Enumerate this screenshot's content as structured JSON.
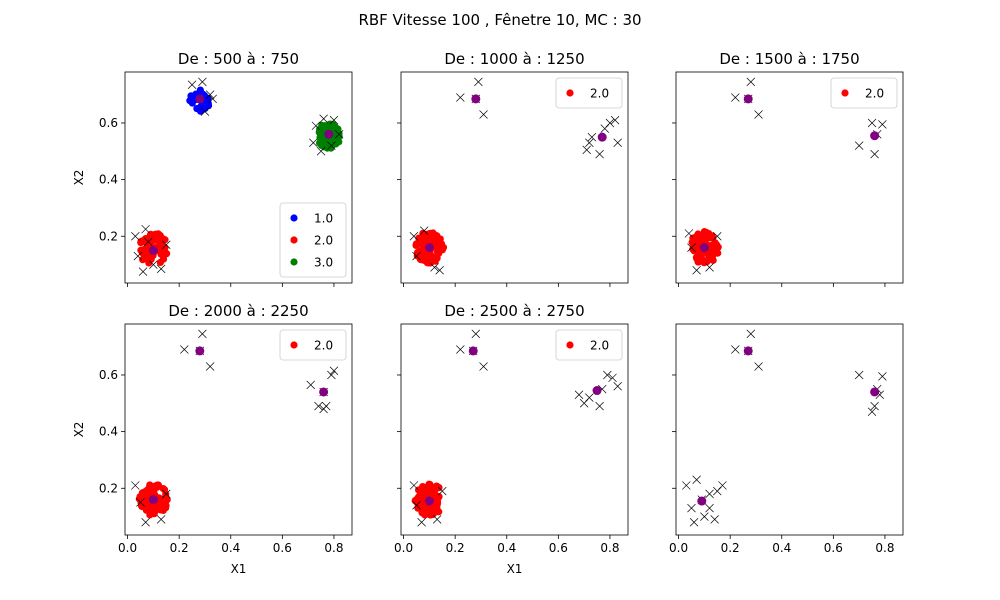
{
  "figure": {
    "title": "RBF Vitesse 100 , Fênetre 10, MC : 30"
  },
  "colors": {
    "1.0": "#0000ff",
    "2.0": "#ff0000",
    "3.0": "#008000",
    "center": "#800080",
    "cross": "#000000"
  },
  "chart_data": [
    {
      "type": "scatter",
      "title": "De :  500 à : 750",
      "xlabel": "",
      "ylabel": "X2",
      "xlim": [
        -0.01,
        0.87
      ],
      "ylim": [
        0.035,
        0.78
      ],
      "xticks": [
        0.0,
        0.2,
        0.4,
        0.6,
        0.8
      ],
      "yticks": [
        0.2,
        0.4,
        0.6
      ],
      "show_xticklabels": false,
      "show_yticklabels": true,
      "legend": {
        "position": "lower-right",
        "entries": [
          "1.0",
          "2.0",
          "3.0"
        ]
      },
      "clusters": [
        {
          "class": "1.0",
          "center": [
            0.28,
            0.675
          ],
          "spread": 0.04,
          "n": 28
        },
        {
          "class": "2.0",
          "center": [
            0.1,
            0.155
          ],
          "spread": 0.055,
          "n": 70
        },
        {
          "class": "3.0",
          "center": [
            0.78,
            0.555
          ],
          "spread": 0.045,
          "n": 70
        }
      ],
      "crosses": [
        [
          0.25,
          0.735
        ],
        [
          0.29,
          0.745
        ],
        [
          0.32,
          0.7
        ],
        [
          0.3,
          0.64
        ],
        [
          0.33,
          0.685
        ],
        [
          0.03,
          0.2
        ],
        [
          0.07,
          0.225
        ],
        [
          0.04,
          0.13
        ],
        [
          0.1,
          0.1
        ],
        [
          0.13,
          0.085
        ],
        [
          0.06,
          0.075
        ],
        [
          0.15,
          0.17
        ],
        [
          0.08,
          0.18
        ],
        [
          0.73,
          0.59
        ],
        [
          0.76,
          0.615
        ],
        [
          0.8,
          0.61
        ],
        [
          0.82,
          0.56
        ],
        [
          0.72,
          0.53
        ],
        [
          0.75,
          0.5
        ],
        [
          0.79,
          0.52
        ]
      ],
      "centers": [
        [
          0.28,
          0.685
        ],
        [
          0.1,
          0.15
        ],
        [
          0.78,
          0.56
        ]
      ]
    },
    {
      "type": "scatter",
      "title": "De :  1000 à : 1250",
      "xlabel": "",
      "ylabel": "",
      "xlim": [
        -0.01,
        0.87
      ],
      "ylim": [
        0.035,
        0.78
      ],
      "xticks": [
        0.0,
        0.2,
        0.4,
        0.6,
        0.8
      ],
      "yticks": [
        0.2,
        0.4,
        0.6
      ],
      "show_xticklabels": false,
      "show_yticklabels": false,
      "legend": {
        "position": "upper-right",
        "entries": [
          "2.0"
        ]
      },
      "clusters": [
        {
          "class": "2.0",
          "center": [
            0.1,
            0.16
          ],
          "spread": 0.055,
          "n": 80
        }
      ],
      "crosses": [
        [
          0.22,
          0.69
        ],
        [
          0.29,
          0.745
        ],
        [
          0.31,
          0.63
        ],
        [
          0.28,
          0.685
        ],
        [
          0.72,
          0.53
        ],
        [
          0.73,
          0.55
        ],
        [
          0.76,
          0.49
        ],
        [
          0.78,
          0.58
        ],
        [
          0.8,
          0.6
        ],
        [
          0.82,
          0.61
        ],
        [
          0.83,
          0.53
        ],
        [
          0.71,
          0.505
        ],
        [
          0.04,
          0.2
        ],
        [
          0.08,
          0.22
        ],
        [
          0.12,
          0.09
        ],
        [
          0.14,
          0.08
        ],
        [
          0.05,
          0.13
        ]
      ],
      "centers": [
        [
          0.28,
          0.685
        ],
        [
          0.1,
          0.16
        ],
        [
          0.77,
          0.55
        ]
      ]
    },
    {
      "type": "scatter",
      "title": "De :  1500 à : 1750",
      "xlabel": "",
      "ylabel": "",
      "xlim": [
        -0.01,
        0.87
      ],
      "ylim": [
        0.035,
        0.78
      ],
      "xticks": [
        0.0,
        0.2,
        0.4,
        0.6,
        0.8
      ],
      "yticks": [
        0.2,
        0.4,
        0.6
      ],
      "show_xticklabels": false,
      "show_yticklabels": false,
      "legend": {
        "position": "upper-right",
        "entries": [
          "2.0"
        ]
      },
      "clusters": [
        {
          "class": "2.0",
          "center": [
            0.1,
            0.16
          ],
          "spread": 0.055,
          "n": 80
        }
      ],
      "crosses": [
        [
          0.22,
          0.69
        ],
        [
          0.28,
          0.745
        ],
        [
          0.31,
          0.63
        ],
        [
          0.27,
          0.685
        ],
        [
          0.7,
          0.52
        ],
        [
          0.75,
          0.6
        ],
        [
          0.79,
          0.595
        ],
        [
          0.76,
          0.49
        ],
        [
          0.77,
          0.56
        ],
        [
          0.04,
          0.21
        ],
        [
          0.07,
          0.08
        ],
        [
          0.12,
          0.09
        ],
        [
          0.15,
          0.2
        ],
        [
          0.05,
          0.16
        ]
      ],
      "centers": [
        [
          0.27,
          0.685
        ],
        [
          0.1,
          0.16
        ],
        [
          0.76,
          0.555
        ]
      ]
    },
    {
      "type": "scatter",
      "title": "De :  2000 à : 2250",
      "xlabel": "",
      "ylabel": "X2",
      "xlim": [
        -0.01,
        0.87
      ],
      "ylim": [
        0.035,
        0.78
      ],
      "xticks": [
        0.0,
        0.2,
        0.4,
        0.6,
        0.8
      ],
      "yticks": [
        0.2,
        0.4,
        0.6
      ],
      "show_xticklabels": true,
      "show_yticklabels": true,
      "legend": {
        "position": "upper-right",
        "entries": [
          "2.0"
        ]
      },
      "clusters": [
        {
          "class": "2.0",
          "center": [
            0.1,
            0.16
          ],
          "spread": 0.055,
          "n": 80
        }
      ],
      "crosses": [
        [
          0.22,
          0.69
        ],
        [
          0.29,
          0.745
        ],
        [
          0.32,
          0.63
        ],
        [
          0.28,
          0.685
        ],
        [
          0.71,
          0.565
        ],
        [
          0.76,
          0.54
        ],
        [
          0.79,
          0.6
        ],
        [
          0.8,
          0.615
        ],
        [
          0.74,
          0.49
        ],
        [
          0.76,
          0.48
        ],
        [
          0.77,
          0.49
        ],
        [
          0.03,
          0.21
        ],
        [
          0.07,
          0.08
        ],
        [
          0.13,
          0.09
        ],
        [
          0.15,
          0.18
        ],
        [
          0.05,
          0.15
        ]
      ],
      "centers": [
        [
          0.28,
          0.685
        ],
        [
          0.1,
          0.16
        ],
        [
          0.76,
          0.54
        ]
      ]
    },
    {
      "type": "scatter",
      "title": "De :  2500 à : 2750",
      "xlabel": "X1",
      "ylabel": "",
      "xlim": [
        -0.01,
        0.87
      ],
      "ylim": [
        0.035,
        0.78
      ],
      "xticks": [
        0.0,
        0.2,
        0.4,
        0.6,
        0.8
      ],
      "yticks": [
        0.2,
        0.4,
        0.6
      ],
      "show_xticklabels": true,
      "show_yticklabels": false,
      "legend": {
        "position": "upper-right",
        "entries": [
          "2.0"
        ]
      },
      "clusters": [
        {
          "class": "2.0",
          "center": [
            0.1,
            0.16
          ],
          "spread": 0.055,
          "n": 80
        }
      ],
      "crosses": [
        [
          0.22,
          0.69
        ],
        [
          0.28,
          0.745
        ],
        [
          0.31,
          0.63
        ],
        [
          0.27,
          0.685
        ],
        [
          0.68,
          0.53
        ],
        [
          0.7,
          0.5
        ],
        [
          0.72,
          0.52
        ],
        [
          0.76,
          0.49
        ],
        [
          0.79,
          0.6
        ],
        [
          0.81,
          0.59
        ],
        [
          0.83,
          0.56
        ],
        [
          0.77,
          0.55
        ],
        [
          0.04,
          0.21
        ],
        [
          0.07,
          0.08
        ],
        [
          0.13,
          0.09
        ],
        [
          0.15,
          0.19
        ],
        [
          0.05,
          0.14
        ]
      ],
      "centers": [
        [
          0.27,
          0.685
        ],
        [
          0.1,
          0.155
        ],
        [
          0.75,
          0.545
        ]
      ]
    },
    {
      "type": "scatter",
      "title": "",
      "xlabel": "",
      "ylabel": "",
      "xlim": [
        -0.01,
        0.87
      ],
      "ylim": [
        0.035,
        0.78
      ],
      "xticks": [
        0.0,
        0.2,
        0.4,
        0.6,
        0.8
      ],
      "yticks": [
        0.2,
        0.4,
        0.6
      ],
      "show_xticklabels": true,
      "show_yticklabels": false,
      "legend": null,
      "clusters": [],
      "crosses": [
        [
          0.22,
          0.69
        ],
        [
          0.28,
          0.745
        ],
        [
          0.31,
          0.63
        ],
        [
          0.27,
          0.685
        ],
        [
          0.7,
          0.6
        ],
        [
          0.75,
          0.47
        ],
        [
          0.76,
          0.49
        ],
        [
          0.78,
          0.53
        ],
        [
          0.79,
          0.595
        ],
        [
          0.77,
          0.55
        ],
        [
          0.03,
          0.21
        ],
        [
          0.07,
          0.23
        ],
        [
          0.05,
          0.13
        ],
        [
          0.06,
          0.08
        ],
        [
          0.1,
          0.1
        ],
        [
          0.12,
          0.13
        ],
        [
          0.15,
          0.19
        ],
        [
          0.17,
          0.21
        ],
        [
          0.12,
          0.18
        ],
        [
          0.09,
          0.16
        ],
        [
          0.14,
          0.09
        ]
      ],
      "centers": [
        [
          0.27,
          0.685
        ],
        [
          0.09,
          0.155
        ],
        [
          0.76,
          0.54
        ]
      ]
    }
  ]
}
